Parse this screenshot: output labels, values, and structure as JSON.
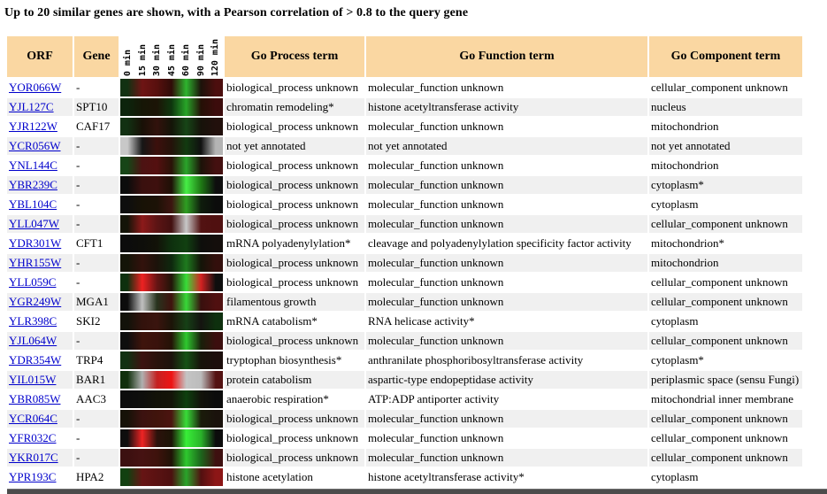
{
  "title": "Up to 20 similar genes are shown, with a Pearson correlation of > 0.8 to the query gene",
  "colors": {
    "header_bg": "#FAD7A2",
    "row_stripe": "#F0F0F0",
    "link": "#0000CC",
    "divider": "#4C4C4C"
  },
  "table": {
    "headers": {
      "orf": "ORF",
      "gene": "Gene",
      "process": "Go Process term",
      "function": "Go Function term",
      "component": "Go Component term"
    },
    "timepoints": [
      "0 min",
      "15 min",
      "30 min",
      "45 min",
      "60 min",
      "90 min",
      "120 min"
    ],
    "rows": [
      {
        "orf": "YOR066W",
        "gene": "-",
        "heatmap": [
          "#123112",
          "#6e1414",
          "#58100e",
          "#300c08",
          "#2eb42e",
          "#1c120a",
          "#4c0e0e"
        ],
        "process": "biological_process unknown",
        "function": "molecular_function unknown",
        "component": "cellular_component unknown"
      },
      {
        "orf": "YJL127C",
        "gene": "SPT10",
        "heatmap": [
          "#0c240c",
          "#161606",
          "#1c1406",
          "#0e360e",
          "#28a428",
          "#241006",
          "#3c0c0c"
        ],
        "process": "chromatin remodeling*",
        "function": "histone acetyltransferase activity",
        "component": "nucleus"
      },
      {
        "orf": "YJR122W",
        "gene": "CAF17",
        "heatmap": [
          "#123112",
          "#181006",
          "#32120c",
          "#141408",
          "#174517",
          "#16120a",
          "#22100c"
        ],
        "process": "biological_process unknown",
        "function": "molecular_function unknown",
        "component": "mitochondrion"
      },
      {
        "orf": "YCR056W",
        "gene": "-",
        "heatmap": [
          "#c8c8c8",
          "#161616",
          "#3c100c",
          "#24120a",
          "#123a10",
          "#101010",
          "#b4b4b4"
        ],
        "process": "not yet annotated",
        "function": "not yet annotated",
        "component": "not yet annotated"
      },
      {
        "orf": "YNL144C",
        "gene": "-",
        "heatmap": [
          "#174517",
          "#4c1212",
          "#541010",
          "#2a1208",
          "#2aa42a",
          "#1c1208",
          "#441010"
        ],
        "process": "biological_process unknown",
        "function": "molecular_function unknown",
        "component": "mitochondrion"
      },
      {
        "orf": "YBR239C",
        "gene": "-",
        "heatmap": [
          "#0c0c0c",
          "#3a100e",
          "#3e100e",
          "#1e1006",
          "#46ee46",
          "#1e7a14",
          "#0e0e0e"
        ],
        "process": "biological_process unknown",
        "function": "molecular_function unknown",
        "component": "cytoplasm*"
      },
      {
        "orf": "YBL104C",
        "gene": "-",
        "heatmap": [
          "#0e0e0e",
          "#181206",
          "#1c1206",
          "#3c1410",
          "#2e9e22",
          "#0e1c0c",
          "#0c0c0c"
        ],
        "process": "biological_process unknown",
        "function": "molecular_function unknown",
        "component": "cytoplasm"
      },
      {
        "orf": "YLL047W",
        "gene": "-",
        "heatmap": [
          "#141408",
          "#8c1a1a",
          "#5c1414",
          "#421010",
          "#c8c8c8",
          "#521212",
          "#501010"
        ],
        "process": "biological_process unknown",
        "function": "molecular_function unknown",
        "component": "cellular_component unknown"
      },
      {
        "orf": "YDR301W",
        "gene": "CFT1",
        "heatmap": [
          "#0c0c0c",
          "#0e0e0a",
          "#121208",
          "#0e300e",
          "#114011",
          "#0e0e0c",
          "#140e0c"
        ],
        "process": "mRNA polyadenylylation*",
        "function": "cleavage and polyadenylylation specificity factor activity",
        "component": "mitochondrion*"
      },
      {
        "orf": "YHR155W",
        "gene": "-",
        "heatmap": [
          "#141408",
          "#33120c",
          "#1c120a",
          "#0e280e",
          "#1e7a1e",
          "#141408",
          "#330f0c"
        ],
        "process": "biological_process unknown",
        "function": "molecular_function unknown",
        "component": "mitochondrion"
      },
      {
        "orf": "YLL059C",
        "gene": "-",
        "heatmap": [
          "#0e300e",
          "#ee2222",
          "#661414",
          "#221408",
          "#38dc38",
          "#d42222",
          "#0e0e0e"
        ],
        "process": "biological_process unknown",
        "function": "molecular_function unknown",
        "component": "cellular_component unknown"
      },
      {
        "orf": "YGR249W",
        "gene": "MGA1",
        "heatmap": [
          "#0c0c0c",
          "#c0c0c0",
          "#28331e",
          "#40120e",
          "#38d838",
          "#38100e",
          "#501010"
        ],
        "process": "filamentous growth",
        "function": "molecular_function unknown",
        "component": "cellular_component unknown"
      },
      {
        "orf": "YLR398C",
        "gene": "SKI2",
        "heatmap": [
          "#12120a",
          "#32120c",
          "#3a140e",
          "#1c1408",
          "#164016",
          "#141410",
          "#0e300e"
        ],
        "process": "mRNA catabolism*",
        "function": "RNA helicase activity*",
        "component": "cytoplasm"
      },
      {
        "orf": "YJL064W",
        "gene": "-",
        "heatmap": [
          "#0e0e0e",
          "#3e140c",
          "#3a120c",
          "#241206",
          "#2ec82e",
          "#18200a",
          "#3c0e0e"
        ],
        "process": "biological_process unknown",
        "function": "molecular_function unknown",
        "component": "cellular_component unknown"
      },
      {
        "orf": "YDR354W",
        "gene": "TRP4",
        "heatmap": [
          "#123112",
          "#3c1210",
          "#2a120c",
          "#1c120c",
          "#155215",
          "#16120a",
          "#1c0e0c"
        ],
        "process": "tryptophan biosynthesis*",
        "function": "anthranilate phosphoribosyltransferase activity",
        "component": "cytoplasm*"
      },
      {
        "orf": "YIL015W",
        "gene": "BAR1",
        "heatmap": [
          "#10300c",
          "#b0b0b0",
          "#c42222",
          "#ee1414",
          "#c4c4c4",
          "#bcbcbc",
          "#541212"
        ],
        "process": "protein catabolism",
        "function": "aspartic-type endopeptidase activity",
        "component": "periplasmic space (sensu Fungi)"
      },
      {
        "orf": "YBR085W",
        "gene": "AAC3",
        "heatmap": [
          "#0c0c0c",
          "#0e0e0c",
          "#121208",
          "#141408",
          "#0e400e",
          "#12120a",
          "#0c0c0c"
        ],
        "process": "anaerobic respiration*",
        "function": "ATP:ADP antiporter activity",
        "component": "mitochondrial inner membrane"
      },
      {
        "orf": "YCR064C",
        "gene": "-",
        "heatmap": [
          "#161208",
          "#3c1210",
          "#40140c",
          "#4c1410",
          "#38dc38",
          "#1a1c0a",
          "#1a120c"
        ],
        "process": "biological_process unknown",
        "function": "molecular_function unknown",
        "component": "cellular_component unknown"
      },
      {
        "orf": "YFR032C",
        "gene": "-",
        "heatmap": [
          "#0e0e0e",
          "#ee2424",
          "#2c120c",
          "#1c1406",
          "#38ee38",
          "#2ab42a",
          "#0c0c0c"
        ],
        "process": "biological_process unknown",
        "function": "molecular_function unknown",
        "component": "cellular_component unknown"
      },
      {
        "orf": "YKR017C",
        "gene": "-",
        "heatmap": [
          "#3c1010",
          "#461212",
          "#3e120c",
          "#201206",
          "#2ec82e",
          "#1c661c",
          "#3e1010"
        ],
        "process": "biological_process unknown",
        "function": "molecular_function unknown",
        "component": "cellular_component unknown"
      },
      {
        "orf": "YPR193C",
        "gene": "HPA2",
        "heatmap": [
          "#124010",
          "#661414",
          "#5a1212",
          "#4c1010",
          "#2aa42a",
          "#521010",
          "#8c1616"
        ],
        "process": "histone acetylation",
        "function": "histone acetyltransferase activity*",
        "component": "cytoplasm"
      }
    ]
  }
}
